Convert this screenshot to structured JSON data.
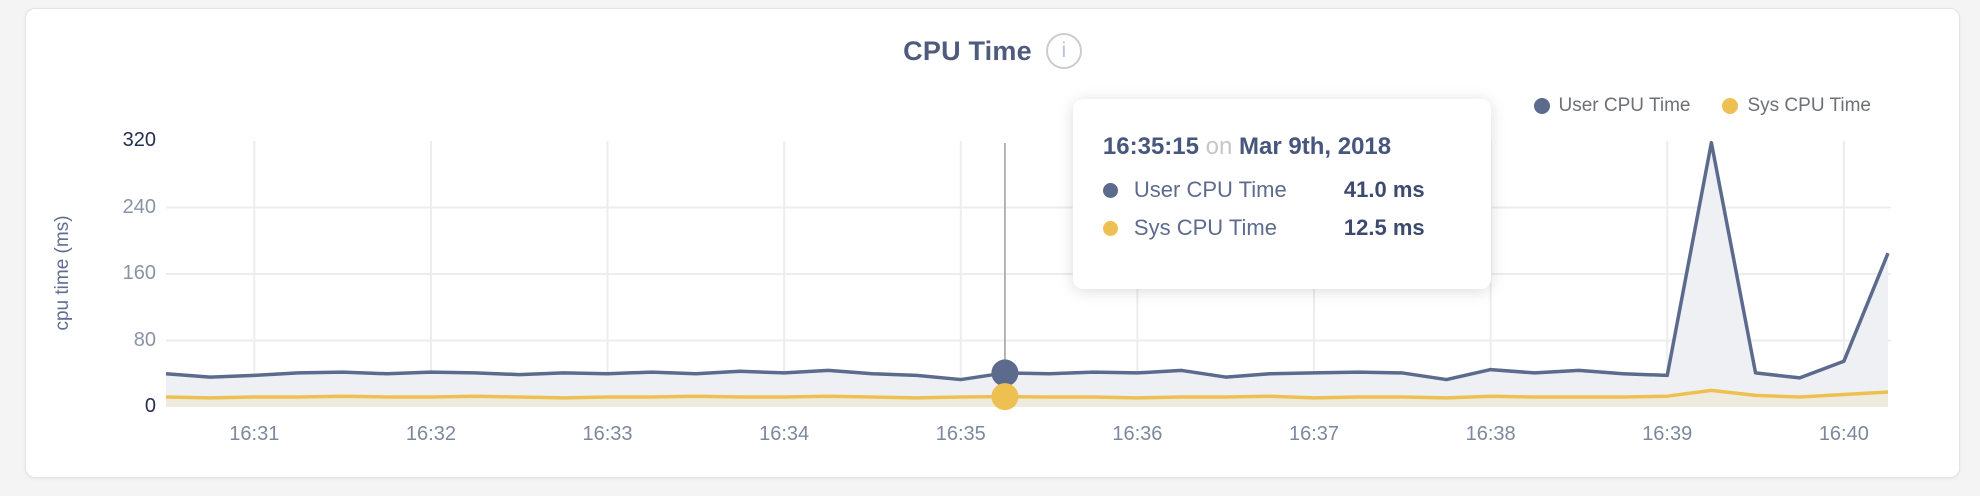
{
  "header": {
    "title": "CPU Time",
    "info_icon": "i"
  },
  "legend": {
    "items": [
      {
        "label": "User CPU Time",
        "color": "#5c6a8d"
      },
      {
        "label": "Sys CPU Time",
        "color": "#eec051"
      }
    ]
  },
  "axes": {
    "y_title": "cpu time (ms)",
    "y_ticks": [
      0,
      80,
      160,
      240,
      320
    ],
    "x_ticks": [
      "16:31",
      "16:32",
      "16:33",
      "16:34",
      "16:35",
      "16:36",
      "16:37",
      "16:38",
      "16:39",
      "16:40"
    ]
  },
  "tooltip": {
    "time": "16:35:15",
    "connector": "on",
    "date": "Mar 9th, 2018",
    "rows": [
      {
        "label": "User CPU Time",
        "value": "41.0 ms",
        "color": "#5c6a8d"
      },
      {
        "label": "Sys CPU Time",
        "value": "12.5 ms",
        "color": "#eec051"
      }
    ]
  },
  "colors": {
    "user_line": "#5c6a8d",
    "user_fill": "#eef0f4",
    "sys_line": "#eec051",
    "sys_fill": "#f0ebdf",
    "grid": "#ededed",
    "crosshair": "#a3a3a3"
  },
  "chart_data": {
    "type": "area",
    "title": "CPU Time",
    "xlabel": "",
    "ylabel": "cpu time (ms)",
    "ylim": [
      0,
      320
    ],
    "legend_position": "top-right",
    "grid": true,
    "x": [
      "16:30:30",
      "16:30:45",
      "16:31:00",
      "16:31:15",
      "16:31:30",
      "16:31:45",
      "16:32:00",
      "16:32:15",
      "16:32:30",
      "16:32:45",
      "16:33:00",
      "16:33:15",
      "16:33:30",
      "16:33:45",
      "16:34:00",
      "16:34:15",
      "16:34:30",
      "16:34:45",
      "16:35:00",
      "16:35:15",
      "16:35:30",
      "16:35:45",
      "16:36:00",
      "16:36:15",
      "16:36:30",
      "16:36:45",
      "16:37:00",
      "16:37:15",
      "16:37:30",
      "16:37:45",
      "16:38:00",
      "16:38:15",
      "16:38:30",
      "16:38:45",
      "16:39:00",
      "16:39:15",
      "16:39:30",
      "16:39:45",
      "16:40:00",
      "16:40:15"
    ],
    "series": [
      {
        "name": "User CPU Time",
        "values": [
          40,
          36,
          38,
          41,
          42,
          40,
          42,
          41,
          39,
          41,
          40,
          42,
          40,
          43,
          41,
          44,
          40,
          38,
          33,
          41,
          40,
          42,
          41,
          44,
          36,
          40,
          41,
          42,
          41,
          33,
          45,
          41,
          44,
          40,
          38,
          318,
          41,
          35,
          55,
          185
        ]
      },
      {
        "name": "Sys CPU Time",
        "values": [
          12,
          11,
          12,
          12,
          13,
          12,
          12,
          13,
          12,
          11,
          12,
          12,
          13,
          12,
          12,
          13,
          12,
          11,
          12,
          12.5,
          12,
          12,
          11,
          12,
          12,
          13,
          11,
          12,
          12,
          11,
          13,
          12,
          12,
          12,
          13,
          20,
          14,
          12,
          15,
          18
        ]
      }
    ],
    "hover": {
      "index": 19,
      "time": "16:35:15",
      "values": {
        "User CPU Time": 41.0,
        "Sys CPU Time": 12.5
      }
    }
  }
}
